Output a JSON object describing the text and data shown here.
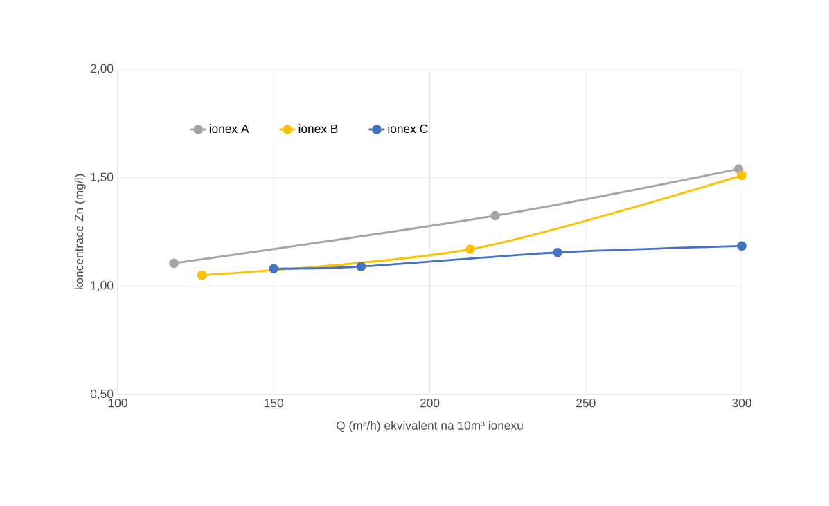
{
  "chart_data": {
    "type": "line",
    "xlabel": "Q (m³/h) ekvivalent na 10m³ ionexu",
    "ylabel": "koncentrace Zn (mg/l)",
    "series": [
      {
        "name": "ionex A",
        "color": "#a5a5a5",
        "x": [
          118,
          221,
          299
        ],
        "values": [
          1.105,
          1.325,
          1.54
        ]
      },
      {
        "name": "ionex B",
        "color": "#ffc000",
        "x": [
          127,
          150,
          213,
          300
        ],
        "values": [
          1.05,
          null,
          1.17,
          1.51
        ]
      },
      {
        "name": "ionex C",
        "color": "#4472c4",
        "x": [
          150,
          178,
          241,
          300
        ],
        "values": [
          1.08,
          1.09,
          1.155,
          1.185
        ]
      }
    ],
    "xlim": [
      100,
      300
    ],
    "xticks": [
      100,
      150,
      200,
      250,
      300
    ],
    "ylim": [
      0.5,
      2.0
    ],
    "yticks": [
      {
        "value": 0.5,
        "label": "0,50"
      },
      {
        "value": 1.0,
        "label": "1,00"
      },
      {
        "value": 1.5,
        "label": "1,50"
      },
      {
        "value": 2.0,
        "label": "2,00"
      }
    ],
    "grid": true,
    "legend": "top left",
    "marker": "circle",
    "line_style": "solid"
  }
}
